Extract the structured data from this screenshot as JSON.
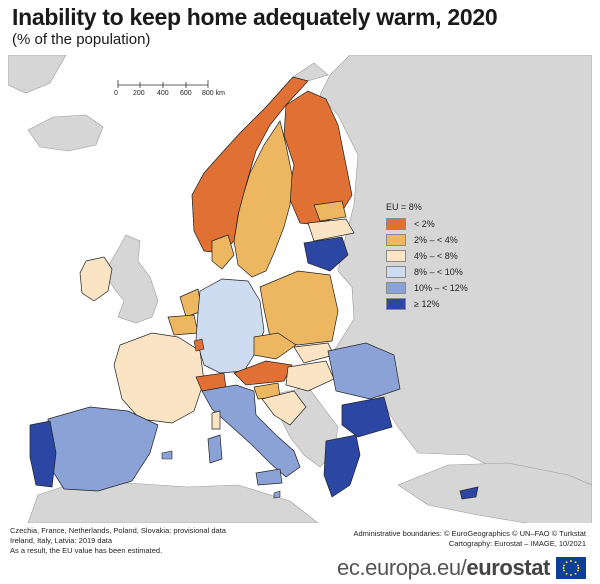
{
  "title": "Inability to keep home adequately warm, 2020",
  "subtitle": "(% of the population)",
  "scale_bar": {
    "labels": [
      "0",
      "200",
      "400",
      "600",
      "800 km"
    ]
  },
  "legend": {
    "header": "EU = 8%",
    "items": [
      {
        "label": "< 2%",
        "color": "#e07033"
      },
      {
        "label": "2% – < 4%",
        "color": "#edb660"
      },
      {
        "label": "4% – < 8%",
        "color": "#fae4c4"
      },
      {
        "label": "8% – < 10%",
        "color": "#cddcf0"
      },
      {
        "label": "10% – < 12%",
        "color": "#8aa2d6"
      },
      {
        "label": "≥ 12%",
        "color": "#2c47a3"
      }
    ]
  },
  "notes": [
    "Czechia, France, Netherlands, Poland, Slovakia: provisional data",
    "Ireland, Italy, Latvia: 2019 data",
    "As a result, the EU value has been estimated."
  ],
  "credits": [
    "Administrative boundaries: © EuroGeographics © UN–FAO © Turkstat",
    "Cartography: Eurostat – IMAGE, 10/2021"
  ],
  "footer": {
    "url_prefix": "ec.europa.eu/",
    "brand": "eurostat"
  },
  "map_colors": {
    "sea": "#ffffff",
    "no_data": "#d6d6d6",
    "border": "#222222"
  }
}
